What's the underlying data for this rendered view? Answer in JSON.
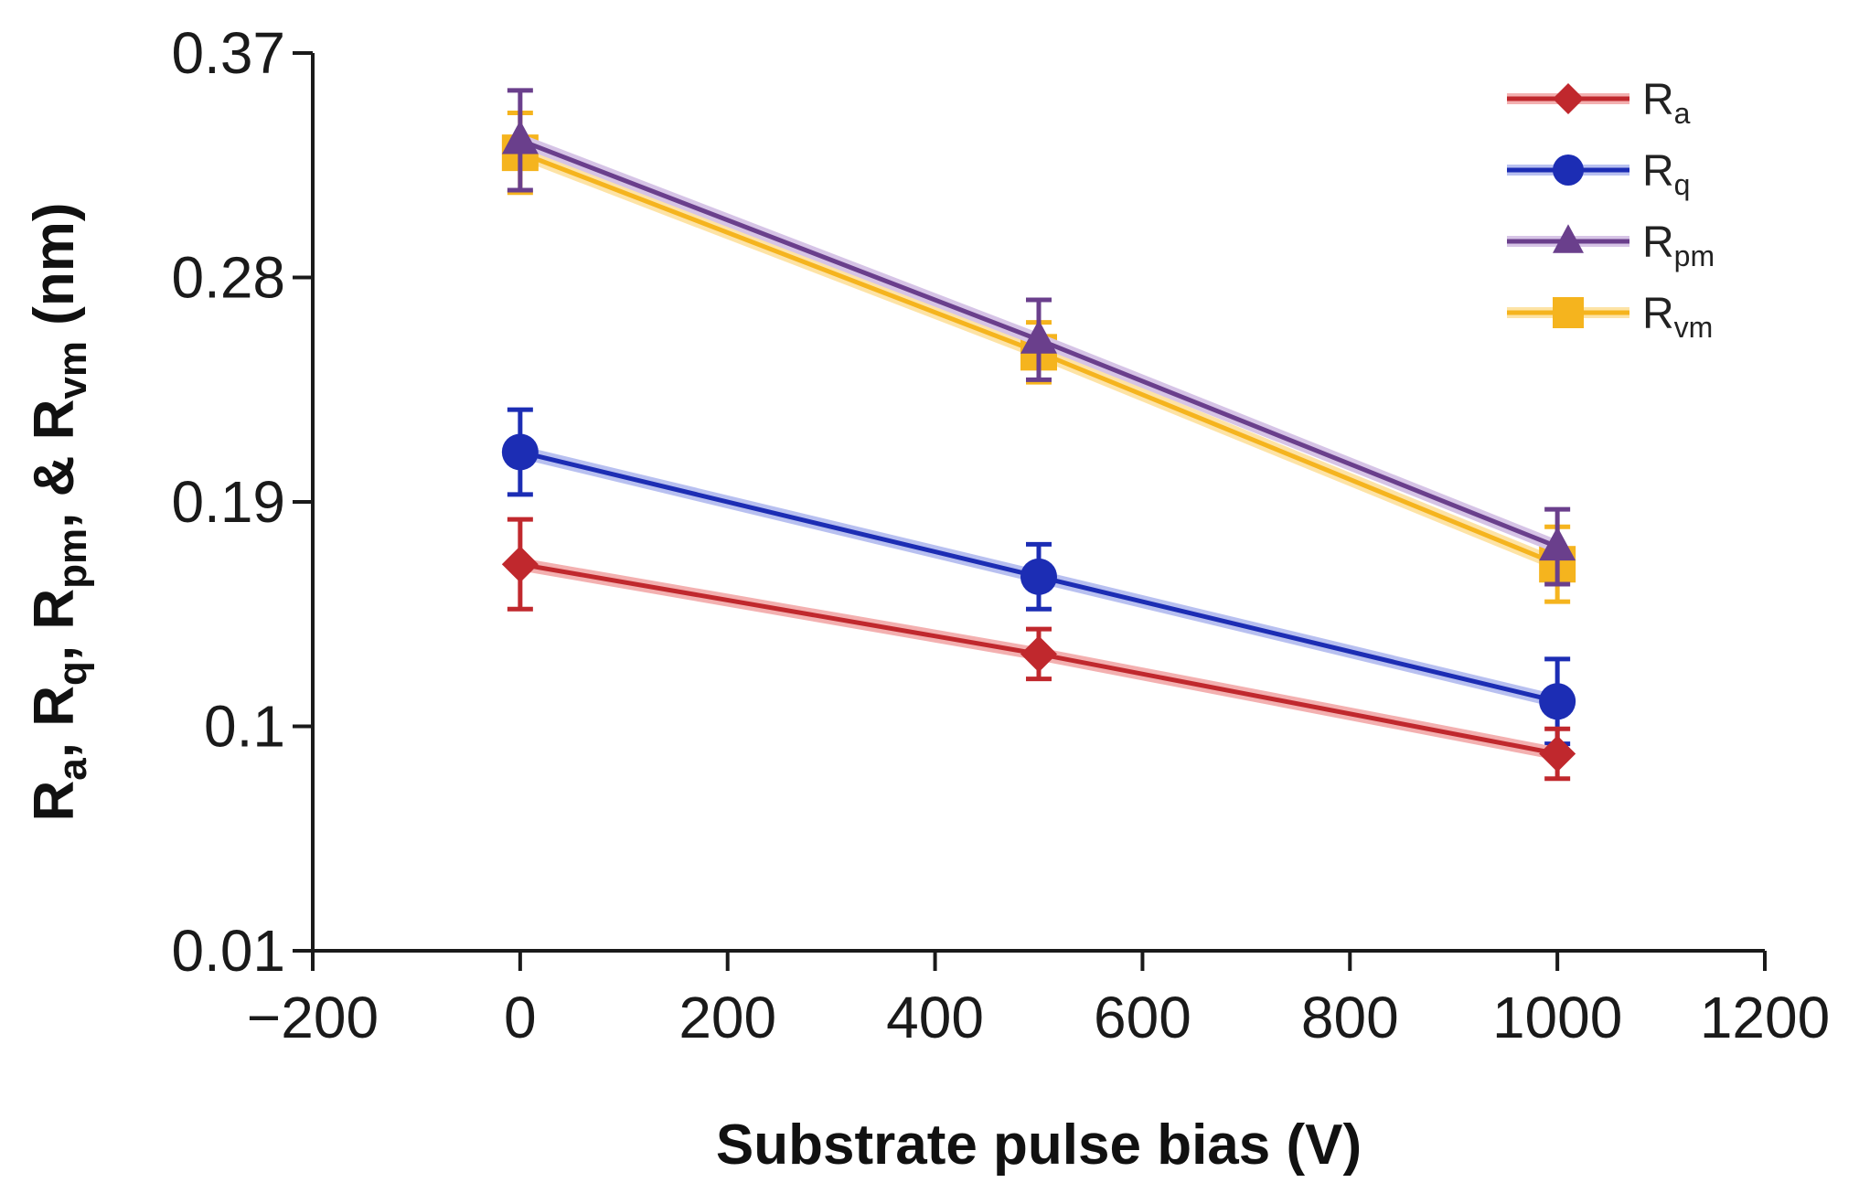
{
  "chart_data": {
    "type": "line",
    "title": "",
    "xlabel": "Substrate pulse bias (V)",
    "ylabel": {
      "parts": [
        {
          "text": "R"
        },
        {
          "text": "a",
          "sub": true
        },
        {
          "text": ", R"
        },
        {
          "text": "q",
          "sub": true
        },
        {
          "text": ", R"
        },
        {
          "text": "pm",
          "sub": true
        },
        {
          "text": ", & R"
        },
        {
          "text": "vm",
          "sub": true
        },
        {
          "text": " (nm)"
        }
      ]
    },
    "xlim": [
      -200,
      1200
    ],
    "ylim": [
      0.01,
      0.37
    ],
    "xticks": [
      -200,
      0,
      200,
      400,
      600,
      800,
      1000,
      1200
    ],
    "xtick_labels": [
      "−200",
      "0",
      "200",
      "400",
      "600",
      "800",
      "1000",
      "1200"
    ],
    "yticks": [
      0.01,
      0.1,
      0.19,
      0.28,
      0.37
    ],
    "ytick_labels": [
      "0.01",
      "0.1",
      "0.19",
      "0.28",
      "0.37"
    ],
    "x": [
      0,
      500,
      1000
    ],
    "legend_position": "top-right",
    "series": [
      {
        "name": "R",
        "sub": "a",
        "marker": "diamond",
        "color": "#c0282d",
        "glow": "#f3b0b0",
        "values": [
          0.165,
          0.129,
          0.089
        ],
        "errors": [
          0.018,
          0.01,
          0.01
        ]
      },
      {
        "name": "R",
        "sub": "q",
        "marker": "circle",
        "color": "#1c2db4",
        "glow": "#b8c0f0",
        "values": [
          0.21,
          0.16,
          0.11
        ],
        "errors": [
          0.017,
          0.013,
          0.017
        ]
      },
      {
        "name": "R",
        "sub": "pm",
        "marker": "triangle",
        "color": "#6a3f8c",
        "glow": "#d6c4e6",
        "values": [
          0.335,
          0.255,
          0.172
        ],
        "errors": [
          0.02,
          0.016,
          0.015
        ]
      },
      {
        "name": "R",
        "sub": "vm",
        "marker": "square",
        "color": "#f5b41e",
        "glow": "#fde3a6",
        "values": [
          0.33,
          0.25,
          0.165
        ],
        "errors": [
          0.016,
          0.012,
          0.015
        ]
      }
    ]
  }
}
